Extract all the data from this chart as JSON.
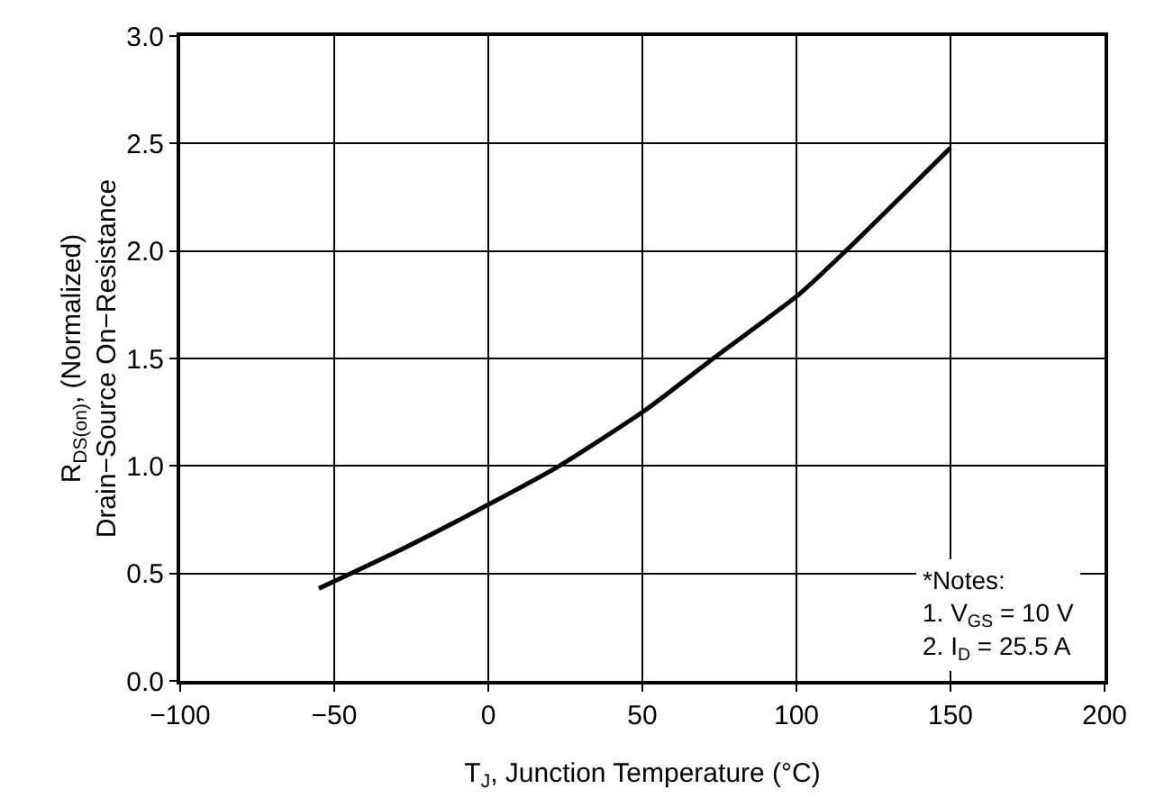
{
  "chart_data": {
    "type": "line",
    "xlabel": "T$_{J}$, Junction Temperature (°C)",
    "ylabel": "R$_{DS(on)}$, (Normalized)\nDrain−Source On−Resistance",
    "x": [
      -55,
      -49,
      -27,
      0,
      23,
      51,
      73,
      101,
      116,
      150
    ],
    "series": [
      {
        "color": "#000000",
        "values": [
          0.43,
          0.47,
          0.62,
          0.82,
          1.0,
          1.26,
          1.5,
          1.8,
          2.0,
          2.48
        ]
      }
    ],
    "xlim": [
      -100,
      200
    ],
    "xticks": [
      {
        "value": -100,
        "label": "−100"
      },
      {
        "value": -50,
        "label": "−50"
      },
      0,
      50,
      100,
      150,
      200
    ],
    "ylim": [
      0,
      3
    ],
    "yticks": [
      {
        "value": 0,
        "label": "0.0"
      },
      {
        "value": 0.5,
        "label": "0.5"
      },
      {
        "value": 1,
        "label": "1.0"
      },
      {
        "value": 1.5,
        "label": "1.5"
      },
      {
        "value": 2,
        "label": "2.0"
      },
      {
        "value": 2.5,
        "label": "2.5"
      },
      {
        "value": 3,
        "label": "3.0"
      }
    ],
    "grid": true,
    "marker": "none",
    "line_style": "solid",
    "annotations": [
      "*Notes:\n1. V$_{GS}$ = 10 V\n2. I$_{D}$ = 25.5 A"
    ]
  }
}
